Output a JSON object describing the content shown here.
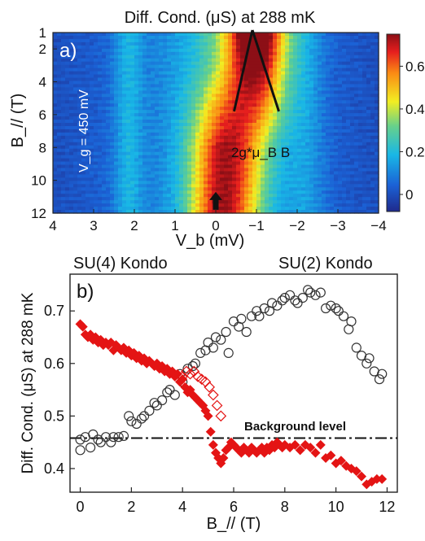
{
  "chart_data": [
    {
      "panel": "a)",
      "type": "heatmap",
      "title": "Diff. Cond. (μS) at 288 mK",
      "xlabel": "V_b (mV)",
      "ylabel": "B_// (T)",
      "xlim": [
        4,
        -4
      ],
      "ylim": [
        12,
        1
      ],
      "x_ticks": [
        "4",
        "3",
        "2",
        "1",
        "0",
        "−1",
        "−2",
        "−3",
        "−4"
      ],
      "x_tick_values": [
        4,
        3,
        2,
        1,
        0,
        -1,
        -2,
        -3,
        -4
      ],
      "y_ticks": [
        "1",
        "2",
        "4",
        "6",
        "8",
        "10",
        "12"
      ],
      "y_tick_values": [
        1,
        2,
        4,
        6,
        8,
        10,
        12
      ],
      "colorbar": {
        "ticks": [
          "0",
          "0.2",
          "0.4",
          "0.6"
        ],
        "tick_values": [
          0,
          0.2,
          0.4,
          0.6
        ],
        "range": [
          -0.08,
          0.75
        ]
      },
      "annotations": {
        "gate": "V_g = 450 mV",
        "splitting": "2g*μ_B B"
      },
      "peak_lines": [
        {
          "from": [
            -0.9,
            1
          ],
          "to": [
            -0.45,
            5.8
          ]
        },
        {
          "from": [
            -0.9,
            1
          ],
          "to": [
            -1.55,
            5.8
          ]
        }
      ],
      "arrow": {
        "x": 0,
        "y": 11.6
      }
    },
    {
      "panel": "b)",
      "type": "scatter",
      "xlabel": "B_// (T)",
      "ylabel": "Diff. Cond. (μS) at 288 mK",
      "xlim": [
        -0.4,
        12.4
      ],
      "ylim": [
        0.355,
        0.77
      ],
      "x_ticks": [
        "0",
        "2",
        "4",
        "6",
        "8",
        "10",
        "12"
      ],
      "x_tick_values": [
        0,
        2,
        4,
        6,
        8,
        10,
        12
      ],
      "y_ticks": [
        "0.4",
        "0.5",
        "0.6",
        "0.7"
      ],
      "y_tick_values": [
        0.4,
        0.5,
        0.6,
        0.7
      ],
      "labels": {
        "left": "SU(4) Kondo",
        "right": "SU(2) Kondo",
        "background": "Background level"
      },
      "background_level": 0.458,
      "series": [
        {
          "marker": "open-circle",
          "color": "#333333",
          "x": [
            0.0,
            0.0,
            0.2,
            0.4,
            0.5,
            0.7,
            0.8,
            1.0,
            1.2,
            1.3,
            1.5,
            1.7,
            1.9,
            2.0,
            2.2,
            2.4,
            2.5,
            2.7,
            2.9,
            3.0,
            3.2,
            3.4,
            3.5,
            3.7,
            3.9,
            4.0,
            4.2,
            4.4,
            4.5,
            4.7,
            4.9,
            5.0,
            5.2,
            5.3,
            5.5,
            5.7,
            5.8,
            6.0,
            6.2,
            6.3,
            6.5,
            6.7,
            6.9,
            7.0,
            7.2,
            7.4,
            7.5,
            7.7,
            7.9,
            8.0,
            8.2,
            8.4,
            8.5,
            8.7,
            8.9,
            9.0,
            9.2,
            9.4,
            9.6,
            9.8,
            10.0,
            10.1,
            10.3,
            10.5,
            10.6,
            10.8,
            11.0,
            11.2,
            11.3,
            11.5,
            11.7,
            11.8
          ],
          "y": [
            0.435,
            0.455,
            0.46,
            0.44,
            0.465,
            0.455,
            0.45,
            0.46,
            0.45,
            0.46,
            0.46,
            0.462,
            0.5,
            0.49,
            0.485,
            0.495,
            0.5,
            0.51,
            0.525,
            0.52,
            0.53,
            0.545,
            0.55,
            0.54,
            0.58,
            0.565,
            0.59,
            0.595,
            0.6,
            0.62,
            0.625,
            0.64,
            0.63,
            0.65,
            0.645,
            0.66,
            0.62,
            0.68,
            0.67,
            0.685,
            0.66,
            0.69,
            0.7,
            0.69,
            0.705,
            0.7,
            0.715,
            0.71,
            0.72,
            0.725,
            0.73,
            0.72,
            0.715,
            0.725,
            0.74,
            0.735,
            0.73,
            0.735,
            0.705,
            0.71,
            0.705,
            0.7,
            0.69,
            0.665,
            0.68,
            0.63,
            0.615,
            0.6,
            0.61,
            0.585,
            0.57,
            0.58
          ]
        },
        {
          "marker": "filled-diamond",
          "color": "#e41414",
          "x": [
            0.0,
            0.1,
            0.2,
            0.3,
            0.4,
            0.5,
            0.6,
            0.7,
            0.8,
            0.9,
            1.0,
            1.1,
            1.2,
            1.3,
            1.4,
            1.5,
            1.6,
            1.7,
            1.8,
            1.9,
            2.0,
            2.1,
            2.2,
            2.3,
            2.4,
            2.5,
            2.6,
            2.7,
            2.8,
            2.9,
            3.0,
            3.1,
            3.2,
            3.3,
            3.4,
            3.5,
            3.6,
            3.7,
            3.8,
            3.9,
            4.0,
            4.1,
            4.2,
            4.3,
            4.4,
            4.5,
            4.6,
            4.7,
            4.8,
            4.9,
            5.0,
            5.1,
            5.2,
            5.3,
            5.4,
            5.5,
            5.6,
            5.7,
            5.8,
            5.9,
            6.0,
            6.1,
            6.2,
            6.3,
            6.4,
            6.5,
            6.6,
            6.7,
            6.8,
            6.9,
            7.0,
            7.1,
            7.2,
            7.3,
            7.4,
            7.5,
            7.6,
            7.7,
            7.8,
            7.9,
            8.0,
            8.2,
            8.4,
            8.6,
            8.8,
            9.0,
            9.2,
            9.4,
            9.6,
            9.8,
            10.0,
            10.2,
            10.4,
            10.6,
            10.8,
            11.0,
            11.2,
            11.4,
            11.6,
            11.8
          ],
          "y": [
            0.675,
            0.67,
            0.655,
            0.65,
            0.655,
            0.645,
            0.65,
            0.64,
            0.645,
            0.635,
            0.64,
            0.635,
            0.64,
            0.625,
            0.635,
            0.63,
            0.625,
            0.63,
            0.62,
            0.625,
            0.615,
            0.62,
            0.61,
            0.615,
            0.605,
            0.61,
            0.6,
            0.605,
            0.6,
            0.595,
            0.6,
            0.59,
            0.595,
            0.585,
            0.59,
            0.58,
            0.585,
            0.575,
            0.58,
            0.565,
            0.57,
            0.555,
            0.545,
            0.55,
            0.54,
            0.535,
            0.53,
            0.525,
            0.52,
            0.51,
            0.5,
            0.47,
            0.445,
            0.43,
            0.42,
            0.41,
            0.42,
            0.435,
            0.44,
            0.45,
            0.445,
            0.44,
            0.435,
            0.43,
            0.44,
            0.435,
            0.43,
            0.44,
            0.435,
            0.43,
            0.435,
            0.44,
            0.43,
            0.44,
            0.435,
            0.445,
            0.44,
            0.45,
            0.445,
            0.44,
            0.445,
            0.44,
            0.445,
            0.435,
            0.445,
            0.44,
            0.43,
            0.445,
            0.42,
            0.425,
            0.41,
            0.415,
            0.405,
            0.4,
            0.395,
            0.385,
            0.37,
            0.375,
            0.38,
            0.38
          ]
        },
        {
          "marker": "open-diamond",
          "color": "#e41414",
          "x": [
            4.0,
            4.15,
            4.3,
            4.45,
            4.6,
            4.75,
            4.9,
            5.05,
            5.2,
            5.35,
            5.5
          ],
          "y": [
            0.575,
            0.585,
            0.58,
            0.585,
            0.575,
            0.57,
            0.565,
            0.555,
            0.54,
            0.52,
            0.5
          ]
        }
      ]
    }
  ]
}
